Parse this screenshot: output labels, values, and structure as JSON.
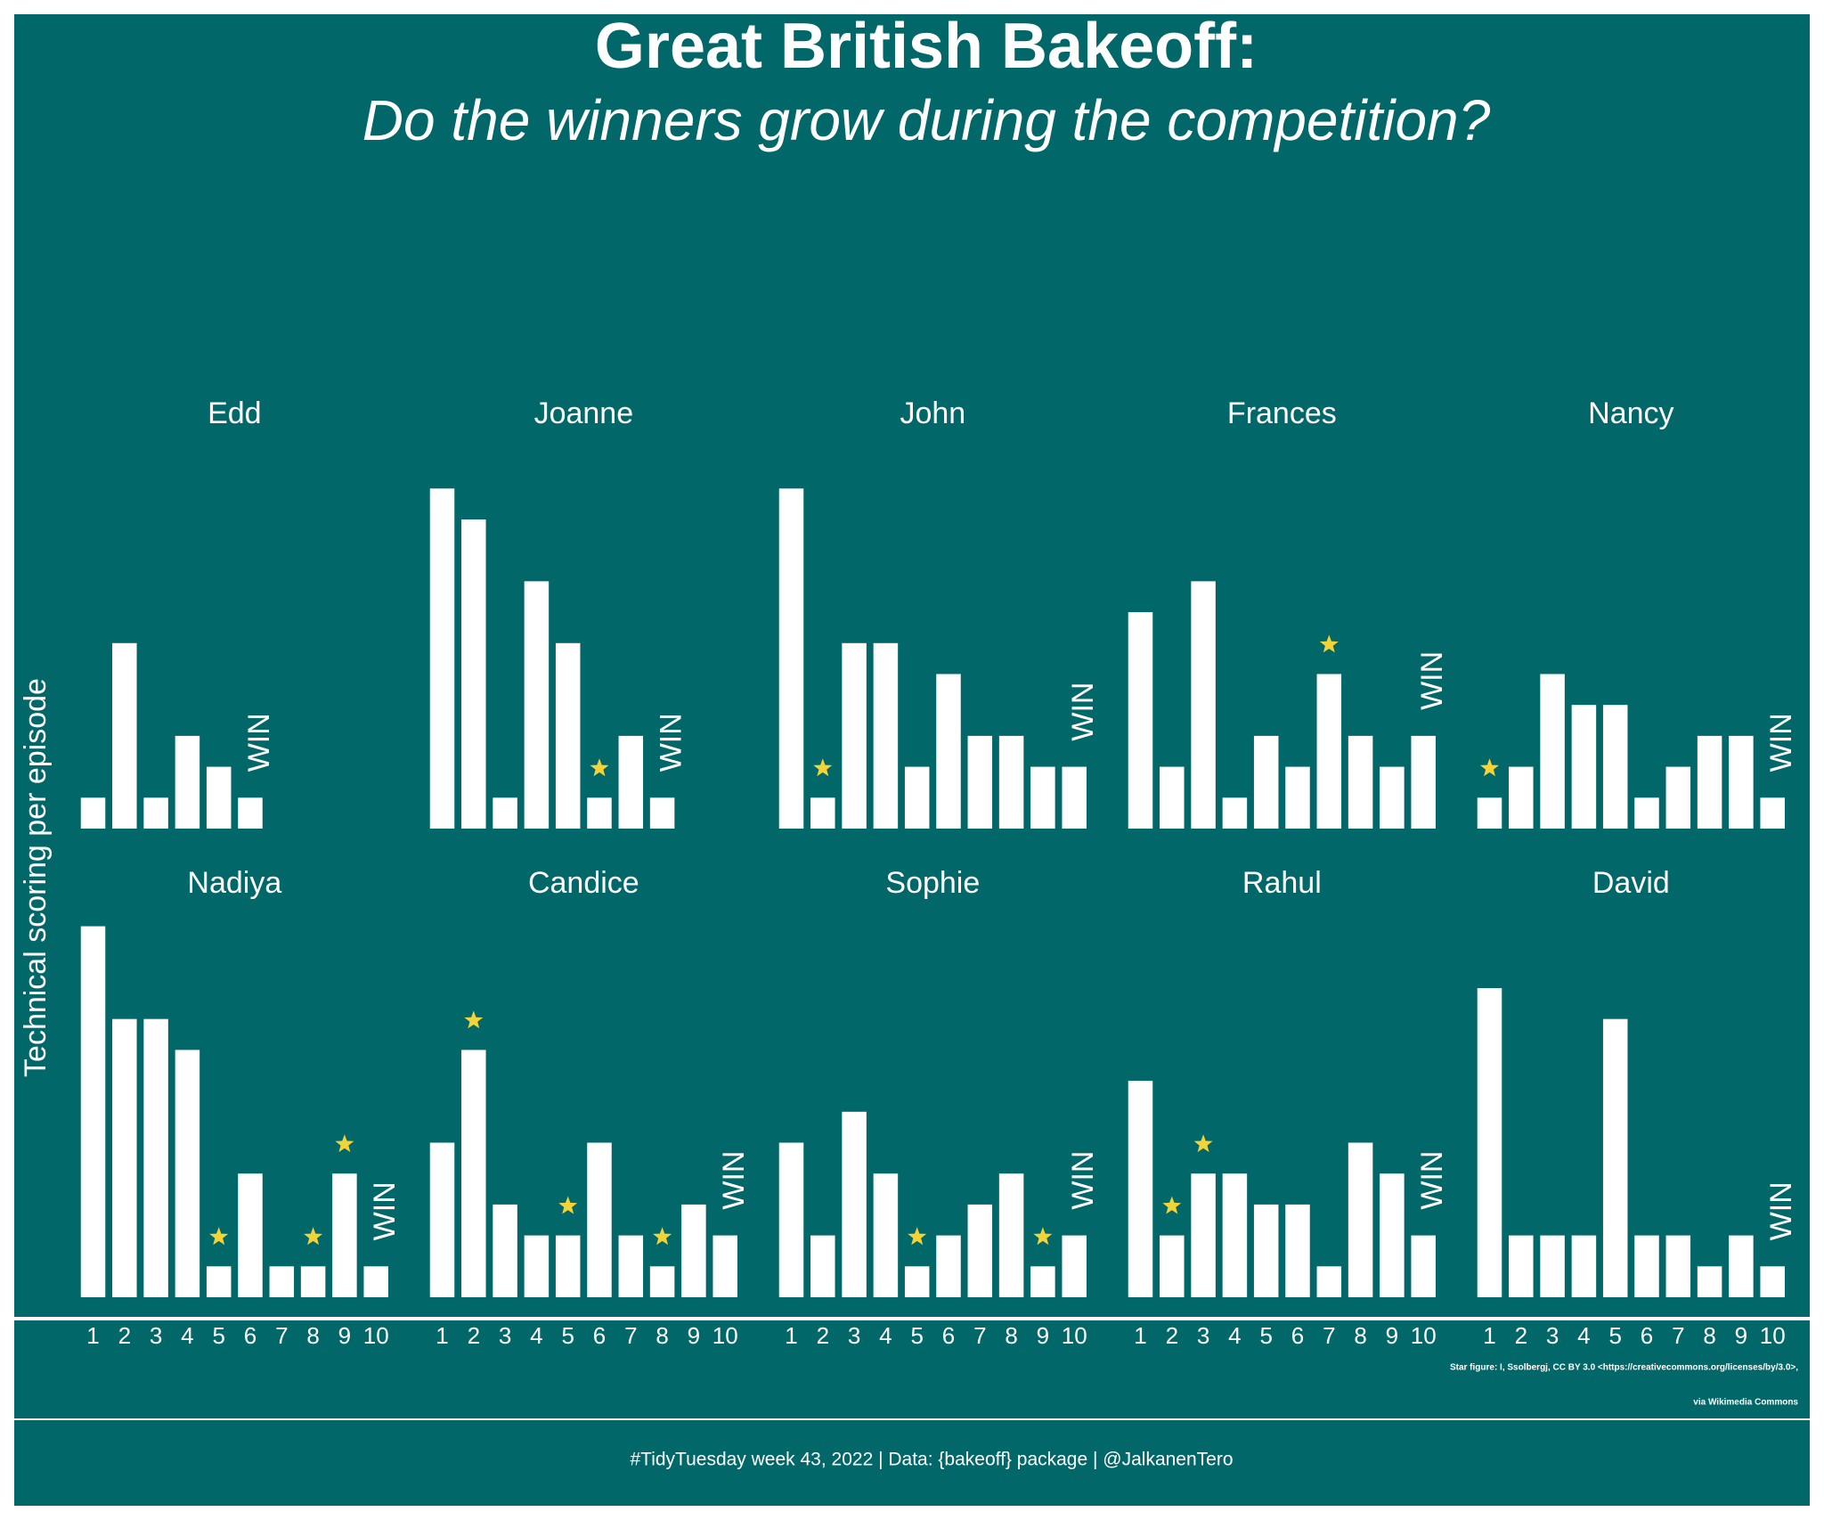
{
  "chart_data": {
    "type": "bar",
    "title": "Great British Bakeoff:",
    "subtitle": "Do the winners grow during the competition?",
    "y_label": "Technical scoring per episode",
    "win_label": "WIN",
    "credit_lines": [
      "Star figure: I, Ssolbergj, CC BY 3.0 <https://creativecommons.org/licenses/by/3.0>,",
      "via Wikimedia Commons"
    ],
    "caption": "#TidyTuesday week 43, 2022 | Data: {bakeoff} package | @JalkanenTero",
    "categories": [
      1,
      2,
      3,
      4,
      5,
      6,
      7,
      8,
      9,
      10
    ],
    "ylim": [
      0,
      12
    ],
    "color": "#ffffff",
    "star_color": "#f2d338",
    "panels": [
      {
        "name": "Edd",
        "values": [
          1,
          6,
          1,
          3,
          2,
          1,
          null,
          null,
          null,
          null
        ],
        "star_episodes": []
      },
      {
        "name": "Joanne",
        "values": [
          11,
          10,
          1,
          8,
          6,
          1,
          3,
          1,
          null,
          null
        ],
        "star_episodes": [
          6
        ]
      },
      {
        "name": "John",
        "values": [
          11,
          1,
          6,
          6,
          2,
          5,
          3,
          3,
          2,
          2
        ],
        "star_episodes": [
          2
        ]
      },
      {
        "name": "Frances",
        "values": [
          7,
          2,
          8,
          1,
          3,
          2,
          5,
          3,
          2,
          3
        ],
        "star_episodes": [
          7
        ]
      },
      {
        "name": "Nancy",
        "values": [
          1,
          2,
          5,
          4,
          4,
          1,
          2,
          3,
          3,
          1
        ],
        "star_episodes": [
          1
        ]
      },
      {
        "name": "Nadiya",
        "values": [
          12,
          9,
          9,
          8,
          1,
          4,
          1,
          1,
          4,
          1
        ],
        "star_episodes": [
          5,
          8,
          9
        ]
      },
      {
        "name": "Candice",
        "values": [
          5,
          8,
          3,
          2,
          2,
          5,
          2,
          1,
          3,
          2
        ],
        "star_episodes": [
          2,
          5,
          8
        ]
      },
      {
        "name": "Sophie",
        "values": [
          5,
          2,
          6,
          4,
          1,
          2,
          3,
          4,
          1,
          2
        ],
        "star_episodes": [
          5,
          9
        ]
      },
      {
        "name": "Rahul",
        "values": [
          7,
          2,
          4,
          4,
          3,
          3,
          1,
          5,
          4,
          2
        ],
        "star_episodes": [
          2,
          3
        ]
      },
      {
        "name": "David",
        "values": [
          10,
          2,
          2,
          2,
          9,
          2,
          2,
          1,
          2,
          1
        ],
        "star_episodes": []
      }
    ]
  }
}
